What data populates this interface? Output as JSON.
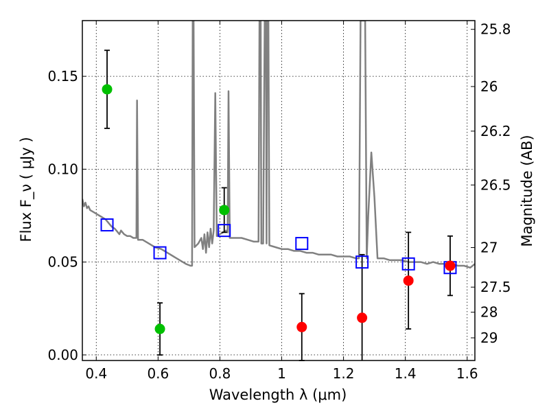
{
  "chart_data": {
    "type": "scatter",
    "xlabel": "Wavelength  λ (μm)",
    "ylabel": "Flux  F_ν  ( μJy )",
    "ylabel_right": "Magnitude (AB)",
    "xlim": [
      0.355,
      1.625
    ],
    "ylim": [
      -0.003,
      0.18
    ],
    "x_ticks": [
      0.4,
      0.6,
      0.8,
      1.0,
      1.2,
      1.4,
      1.6
    ],
    "x_tick_labels": [
      "0.4",
      "0.6",
      "0.8",
      "1",
      "1.2",
      "1.4",
      "1.6"
    ],
    "y_ticks": [
      0.0,
      0.05,
      0.1,
      0.15
    ],
    "y_tick_labels": [
      "0.00",
      "0.05",
      "0.10",
      "0.15"
    ],
    "right_ticks": [
      {
        "label": "25.8",
        "flux": 0.1753
      },
      {
        "label": "26",
        "flux": 0.1445
      },
      {
        "label": "26.2",
        "flux": 0.1205
      },
      {
        "label": "26.5",
        "flux": 0.0915
      },
      {
        "label": "27",
        "flux": 0.0578
      },
      {
        "label": "27.5",
        "flux": 0.0365
      },
      {
        "label": "28",
        "flux": 0.023
      },
      {
        "label": "29",
        "flux": 0.0092
      }
    ],
    "grid": true,
    "series": [
      {
        "type": "errorbar",
        "color": "#00c000",
        "points": [
          {
            "x": 0.435,
            "y": 0.143,
            "err": 0.021
          },
          {
            "x": 0.606,
            "y": 0.014,
            "err": 0.014
          },
          {
            "x": 0.814,
            "y": 0.078,
            "err": 0.012
          }
        ]
      },
      {
        "type": "errorbar",
        "color": "#ff0000",
        "points": [
          {
            "x": 1.065,
            "y": 0.015,
            "err": 0.018
          },
          {
            "x": 1.26,
            "y": 0.02,
            "err": 0.034
          },
          {
            "x": 1.41,
            "y": 0.04,
            "err": 0.026
          },
          {
            "x": 1.545,
            "y": 0.048,
            "err": 0.016
          }
        ]
      },
      {
        "type": "model_photometry",
        "color": "#0000ff",
        "points": [
          {
            "x": 0.435,
            "y": 0.07
          },
          {
            "x": 0.606,
            "y": 0.055
          },
          {
            "x": 0.814,
            "y": 0.067
          },
          {
            "x": 1.065,
            "y": 0.06
          },
          {
            "x": 1.26,
            "y": 0.05
          },
          {
            "x": 1.41,
            "y": 0.049
          },
          {
            "x": 1.545,
            "y": 0.047
          }
        ]
      },
      {
        "type": "spectrum",
        "color": "#808080",
        "points": [
          [
            0.355,
            0.084
          ],
          [
            0.36,
            0.08
          ],
          [
            0.365,
            0.082
          ],
          [
            0.37,
            0.079
          ],
          [
            0.375,
            0.08
          ],
          [
            0.38,
            0.078
          ],
          [
            0.39,
            0.077
          ],
          [
            0.4,
            0.076
          ],
          [
            0.41,
            0.075
          ],
          [
            0.42,
            0.074
          ],
          [
            0.43,
            0.073
          ],
          [
            0.44,
            0.071
          ],
          [
            0.45,
            0.069
          ],
          [
            0.46,
            0.068
          ],
          [
            0.47,
            0.066
          ],
          [
            0.475,
            0.065
          ],
          [
            0.48,
            0.067
          ],
          [
            0.49,
            0.065
          ],
          [
            0.5,
            0.064
          ],
          [
            0.51,
            0.064
          ],
          [
            0.52,
            0.063
          ],
          [
            0.53,
            0.063
          ],
          [
            0.532,
            0.137
          ],
          [
            0.535,
            0.062
          ],
          [
            0.55,
            0.062
          ],
          [
            0.57,
            0.06
          ],
          [
            0.59,
            0.058
          ],
          [
            0.61,
            0.057
          ],
          [
            0.63,
            0.055
          ],
          [
            0.65,
            0.053
          ],
          [
            0.67,
            0.051
          ],
          [
            0.69,
            0.049
          ],
          [
            0.705,
            0.048
          ],
          [
            0.71,
            0.048
          ],
          [
            0.712,
            0.18
          ],
          [
            0.715,
            0.18
          ],
          [
            0.718,
            0.058
          ],
          [
            0.73,
            0.06
          ],
          [
            0.74,
            0.063
          ],
          [
            0.745,
            0.057
          ],
          [
            0.75,
            0.065
          ],
          [
            0.755,
            0.055
          ],
          [
            0.76,
            0.066
          ],
          [
            0.765,
            0.058
          ],
          [
            0.77,
            0.068
          ],
          [
            0.775,
            0.06
          ],
          [
            0.78,
            0.067
          ],
          [
            0.785,
            0.141
          ],
          [
            0.79,
            0.064
          ],
          [
            0.8,
            0.065
          ],
          [
            0.81,
            0.066
          ],
          [
            0.82,
            0.067
          ],
          [
            0.825,
            0.066
          ],
          [
            0.828,
            0.142
          ],
          [
            0.832,
            0.063
          ],
          [
            0.85,
            0.063
          ],
          [
            0.87,
            0.063
          ],
          [
            0.89,
            0.062
          ],
          [
            0.91,
            0.061
          ],
          [
            0.925,
            0.061
          ],
          [
            0.928,
            0.18
          ],
          [
            0.932,
            0.18
          ],
          [
            0.934,
            0.06
          ],
          [
            0.94,
            0.06
          ],
          [
            0.945,
            0.18
          ],
          [
            0.949,
            0.18
          ],
          [
            0.951,
            0.06
          ],
          [
            0.953,
            0.18
          ],
          [
            0.957,
            0.18
          ],
          [
            0.96,
            0.059
          ],
          [
            0.98,
            0.058
          ],
          [
            1.0,
            0.057
          ],
          [
            1.02,
            0.057
          ],
          [
            1.04,
            0.056
          ],
          [
            1.06,
            0.056
          ],
          [
            1.08,
            0.055
          ],
          [
            1.1,
            0.055
          ],
          [
            1.12,
            0.054
          ],
          [
            1.14,
            0.054
          ],
          [
            1.16,
            0.054
          ],
          [
            1.18,
            0.053
          ],
          [
            1.2,
            0.053
          ],
          [
            1.22,
            0.053
          ],
          [
            1.24,
            0.052
          ],
          [
            1.25,
            0.052
          ],
          [
            1.255,
            0.18
          ],
          [
            1.27,
            0.18
          ],
          [
            1.275,
            0.052
          ],
          [
            1.28,
            0.075
          ],
          [
            1.29,
            0.109
          ],
          [
            1.3,
            0.085
          ],
          [
            1.31,
            0.052
          ],
          [
            1.33,
            0.052
          ],
          [
            1.35,
            0.051
          ],
          [
            1.37,
            0.051
          ],
          [
            1.39,
            0.051
          ],
          [
            1.41,
            0.05
          ],
          [
            1.43,
            0.05
          ],
          [
            1.45,
            0.05
          ],
          [
            1.47,
            0.049
          ],
          [
            1.49,
            0.05
          ],
          [
            1.51,
            0.049
          ],
          [
            1.53,
            0.049
          ],
          [
            1.55,
            0.049
          ],
          [
            1.57,
            0.048
          ],
          [
            1.59,
            0.048
          ],
          [
            1.61,
            0.047
          ],
          [
            1.625,
            0.049
          ]
        ]
      }
    ]
  }
}
